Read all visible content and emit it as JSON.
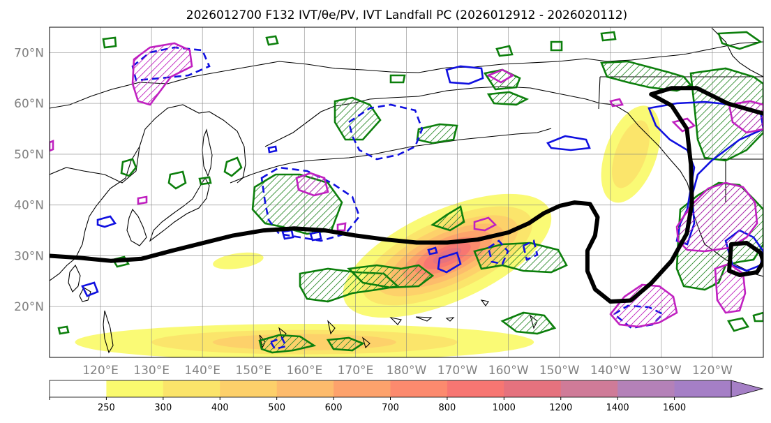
{
  "chart_data": {
    "type": "map",
    "title": "2026012700 F132 IVT/θe/PV, IVT Landfall PC (2026012912 - 2026020112)",
    "extent": {
      "lon_min": 110,
      "lon_max": 250,
      "lat_min": 10,
      "lat_max": 75
    },
    "lat_ticks": [
      {
        "value": 20,
        "label": "20°N"
      },
      {
        "value": 30,
        "label": "30°N"
      },
      {
        "value": 40,
        "label": "40°N"
      },
      {
        "value": 50,
        "label": "50°N"
      },
      {
        "value": 60,
        "label": "60°N"
      },
      {
        "value": 70,
        "label": "70°N"
      }
    ],
    "lon_ticks": [
      {
        "value": 120,
        "label": "120°E"
      },
      {
        "value": 130,
        "label": "130°E"
      },
      {
        "value": 140,
        "label": "140°E"
      },
      {
        "value": 150,
        "label": "150°E"
      },
      {
        "value": 160,
        "label": "160°E"
      },
      {
        "value": 170,
        "label": "170°E"
      },
      {
        "value": 180,
        "label": "180°W"
      },
      {
        "value": 190,
        "label": "170°W"
      },
      {
        "value": 200,
        "label": "160°W"
      },
      {
        "value": 210,
        "label": "150°W"
      },
      {
        "value": 220,
        "label": "140°W"
      },
      {
        "value": 230,
        "label": "130°W"
      },
      {
        "value": 240,
        "label": "120°W"
      }
    ],
    "colorbar": {
      "levels": [
        250,
        300,
        400,
        500,
        600,
        700,
        800,
        1000,
        1200,
        1400,
        1600
      ],
      "colors": [
        "#ffffff",
        "#fafa6e",
        "#fbe46a",
        "#fdd06a",
        "#fdbb6c",
        "#fda26c",
        "#fc8a6e",
        "#f77672",
        "#e5727e",
        "#cf7b98",
        "#b481b8",
        "#a57fc6"
      ],
      "extend": "max"
    },
    "ivt_plumes": [
      {
        "name": "main-ar",
        "center": [
          188,
          30
        ],
        "radii": [
          [
            22,
            9,
            250
          ],
          [
            18,
            7,
            300
          ],
          [
            15,
            5.6,
            400
          ],
          [
            12,
            4.4,
            500
          ],
          [
            9.5,
            3.4,
            600
          ],
          [
            7,
            2.6,
            700
          ],
          [
            5,
            1.8,
            800
          ],
          [
            3,
            1.1,
            1000
          ]
        ],
        "rotation": -24
      },
      {
        "name": "gulf-alaska",
        "center": [
          224,
          50
        ],
        "radii": [
          [
            5,
            10,
            250
          ],
          [
            3,
            7,
            300
          ]
        ],
        "rotation": 20
      },
      {
        "name": "tropical-band",
        "center": [
          160,
          13
        ],
        "radii": [
          [
            45,
            3.6,
            250
          ],
          [
            30,
            2.4,
            300
          ],
          [
            18,
            1.6,
            400
          ]
        ],
        "rotation": 0
      },
      {
        "name": "small-west",
        "center": [
          147,
          29
        ],
        "radii": [
          [
            5,
            1.5,
            250
          ]
        ],
        "rotation": -8
      }
    ],
    "landfall_pc_line": [
      [
        110,
        30
      ],
      [
        116,
        29.6
      ],
      [
        122,
        29
      ],
      [
        128,
        29.4
      ],
      [
        134,
        31
      ],
      [
        140,
        32.5
      ],
      [
        146,
        34
      ],
      [
        152,
        35
      ],
      [
        158,
        35.4
      ],
      [
        164,
        35
      ],
      [
        170,
        34
      ],
      [
        176,
        33.2
      ],
      [
        182,
        32.6
      ],
      [
        188,
        32.6
      ],
      [
        194,
        33.2
      ],
      [
        200,
        34.6
      ],
      [
        204,
        36.4
      ],
      [
        207,
        38.4
      ],
      [
        210,
        39.8
      ],
      [
        213,
        40.5
      ],
      [
        216,
        40.2
      ],
      [
        217.5,
        37.6
      ],
      [
        217,
        34
      ],
      [
        215.5,
        31
      ],
      [
        215.5,
        27
      ],
      [
        217,
        23.4
      ],
      [
        220,
        21
      ],
      [
        224,
        21.2
      ],
      [
        228,
        24.6
      ],
      [
        232,
        29
      ],
      [
        235,
        34.4
      ],
      [
        236,
        40.4
      ],
      [
        235.8,
        48
      ],
      [
        235,
        55
      ],
      [
        232,
        59.6
      ],
      [
        228,
        61.8
      ],
      [
        232,
        63
      ],
      [
        237,
        63
      ],
      [
        243,
        60
      ],
      [
        250,
        58
      ]
    ]
  }
}
